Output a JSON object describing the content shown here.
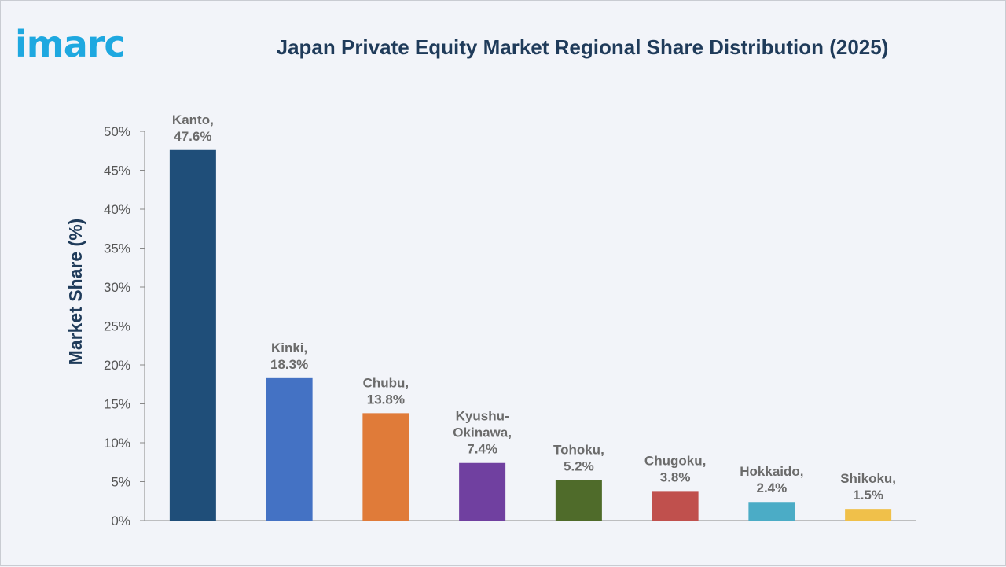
{
  "brand": {
    "logo_text": "imarc"
  },
  "chart_data": {
    "type": "bar",
    "title": "Japan Private Equity Market Regional Share Distribution (2025)",
    "ylabel": "Market Share (%)",
    "xlabel": "",
    "ylim": [
      0,
      50
    ],
    "yticks": [
      "0%",
      "5%",
      "10%",
      "15%",
      "20%",
      "25%",
      "30%",
      "35%",
      "40%",
      "45%",
      "50%"
    ],
    "grid": false,
    "categories": [
      "Kanto",
      "Kinki",
      "Chubu",
      "Kyushu-Okinawa",
      "Tohoku",
      "Chugoku",
      "Hokkaido",
      "Shikoku"
    ],
    "values": [
      47.6,
      18.3,
      13.8,
      7.4,
      5.2,
      3.8,
      2.4,
      1.5
    ],
    "data_labels": [
      [
        "Kanto,",
        "47.6%"
      ],
      [
        "Kinki,",
        "18.3%"
      ],
      [
        "Chubu,",
        "13.8%"
      ],
      [
        "Kyushu-",
        "Okinawa,",
        "7.4%"
      ],
      [
        "Tohoku,",
        "5.2%"
      ],
      [
        "Chugoku,",
        "3.8%"
      ],
      [
        "Hokkaido,",
        "2.4%"
      ],
      [
        "Shikoku,",
        "1.5%"
      ]
    ],
    "colors": [
      "#1f4e79",
      "#4472c4",
      "#e07b39",
      "#7040a0",
      "#4f6b2a",
      "#c0504d",
      "#4bacc6",
      "#f0c04a"
    ]
  }
}
